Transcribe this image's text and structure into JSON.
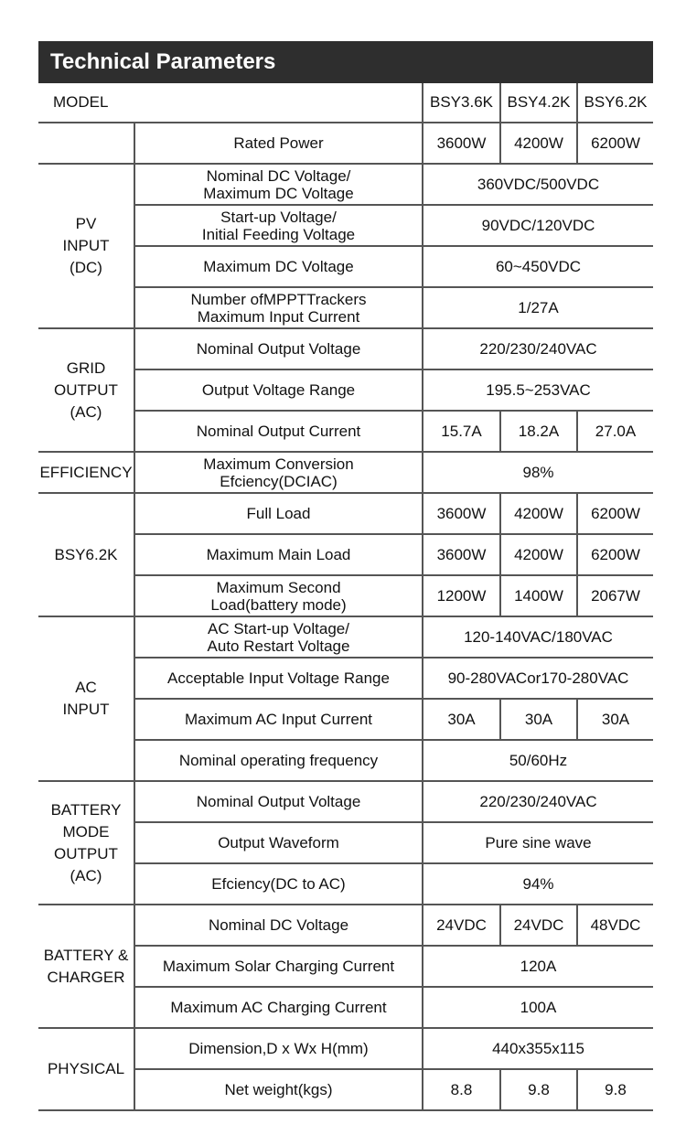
{
  "title": "Technical Parameters",
  "model_label": "MODEL",
  "models": [
    "BSY3.6K",
    "BSY4.2K",
    "BSY6.2K"
  ],
  "groups": [
    {
      "name": "",
      "rows": [
        {
          "label": "Rated Power",
          "values": [
            "3600W",
            "4200W",
            "6200W"
          ]
        }
      ]
    },
    {
      "name": "PV\nINPUT\n(DC)",
      "rows": [
        {
          "label": "Nominal DC Voltage/\nMaximum DC Voltage",
          "value": "360VDC/500VDC"
        },
        {
          "label": "Start-up Voltage/\nInitial Feeding Voltage",
          "value": "90VDC/120VDC"
        },
        {
          "label": "Maximum DC Voltage",
          "value": "60~450VDC"
        },
        {
          "label": "Number ofMPPTTrackers\nMaximum Input Current",
          "value": "1/27A"
        }
      ]
    },
    {
      "name": "GRID\nOUTPUT\n(AC)",
      "rows": [
        {
          "label": "Nominal Output Voltage",
          "value": "220/230/240VAC"
        },
        {
          "label": "Output Voltage Range",
          "value": "195.5~253VAC"
        },
        {
          "label": "Nominal Output Current",
          "values": [
            "15.7A",
            "18.2A",
            "27.0A"
          ]
        }
      ]
    },
    {
      "name": "EFFICIENCY",
      "rows": [
        {
          "label": "Maximum Conversion\nEfciency(DCIAC)",
          "value": "98%"
        }
      ]
    },
    {
      "name": "BSY6.2K",
      "rows": [
        {
          "label": "Full Load",
          "values": [
            "3600W",
            "4200W",
            "6200W"
          ]
        },
        {
          "label": "Maximum Main Load",
          "values": [
            "3600W",
            "4200W",
            "6200W"
          ]
        },
        {
          "label": "Maximum Second\nLoad(battery mode)",
          "values": [
            "1200W",
            "1400W",
            "2067W"
          ]
        }
      ]
    },
    {
      "name": "AC\nINPUT",
      "rows": [
        {
          "label": "AC Start-up Voltage/\nAuto Restart Voltage",
          "value": "120-140VAC/180VAC"
        },
        {
          "label": "Acceptable Input Voltage Range",
          "value": "90-280VACor170-280VAC"
        },
        {
          "label": "Maximum AC Input Current",
          "values": [
            "30A",
            "30A",
            "30A"
          ]
        },
        {
          "label": "Nominal operating frequency",
          "value": "50/60Hz"
        }
      ]
    },
    {
      "name": "BATTERY\nMODE\nOUTPUT\n(AC)",
      "rows": [
        {
          "label": "Nominal Output Voltage",
          "value": "220/230/240VAC"
        },
        {
          "label": "Output Waveform",
          "value": "Pure sine wave"
        },
        {
          "label": "Efciency(DC to AC)",
          "value": "94%"
        }
      ]
    },
    {
      "name": "BATTERY &\nCHARGER",
      "rows": [
        {
          "label": "Nominal DC Voltage",
          "values": [
            "24VDC",
            "24VDC",
            "48VDC"
          ]
        },
        {
          "label": "Maximum Solar Charging Current",
          "value": "120A"
        },
        {
          "label": "Maximum AC Charging Current",
          "value": "100A"
        }
      ]
    },
    {
      "name": "PHYSICAL",
      "rows": [
        {
          "label": "Dimension,D x Wx H(mm)",
          "value": "440x355x115"
        },
        {
          "label": "Net weight(kgs)",
          "values": [
            "8.8",
            "9.8",
            "9.8"
          ]
        }
      ]
    }
  ]
}
